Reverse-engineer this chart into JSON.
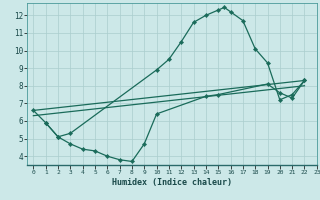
{
  "xlabel": "Humidex (Indice chaleur)",
  "bg_color": "#cce8e8",
  "grid_color": "#aacece",
  "line_color": "#1a6b5a",
  "line1_x": [
    0,
    1,
    2,
    3,
    10,
    11,
    12,
    13,
    14,
    15,
    15.5,
    16,
    17,
    18,
    19,
    20,
    21,
    22
  ],
  "line1_y": [
    6.6,
    5.9,
    5.1,
    5.3,
    8.9,
    9.5,
    10.5,
    11.6,
    12.0,
    12.3,
    12.45,
    12.2,
    11.7,
    10.1,
    9.3,
    7.2,
    7.5,
    8.3
  ],
  "line2_x": [
    0,
    22
  ],
  "line2_y": [
    6.6,
    8.3
  ],
  "line3_x": [
    0,
    22
  ],
  "line3_y": [
    6.3,
    8.0
  ],
  "line4_x": [
    1,
    2,
    3,
    4,
    5,
    6,
    7,
    8,
    9,
    10,
    14,
    15,
    19,
    20,
    21,
    22
  ],
  "line4_y": [
    5.9,
    5.1,
    4.7,
    4.4,
    4.3,
    4.0,
    3.8,
    3.7,
    4.7,
    6.4,
    7.4,
    7.5,
    8.1,
    7.6,
    7.3,
    8.3
  ],
  "xlim": [
    -0.5,
    23
  ],
  "ylim": [
    3.5,
    12.7
  ],
  "xtick_vals": [
    0,
    1,
    2,
    3,
    4,
    5,
    6,
    7,
    8,
    9,
    10,
    11,
    12,
    13,
    14,
    15,
    16,
    17,
    18,
    19,
    20,
    21,
    22,
    23
  ],
  "ytick_vals": [
    4,
    5,
    6,
    7,
    8,
    9,
    10,
    11,
    12
  ]
}
